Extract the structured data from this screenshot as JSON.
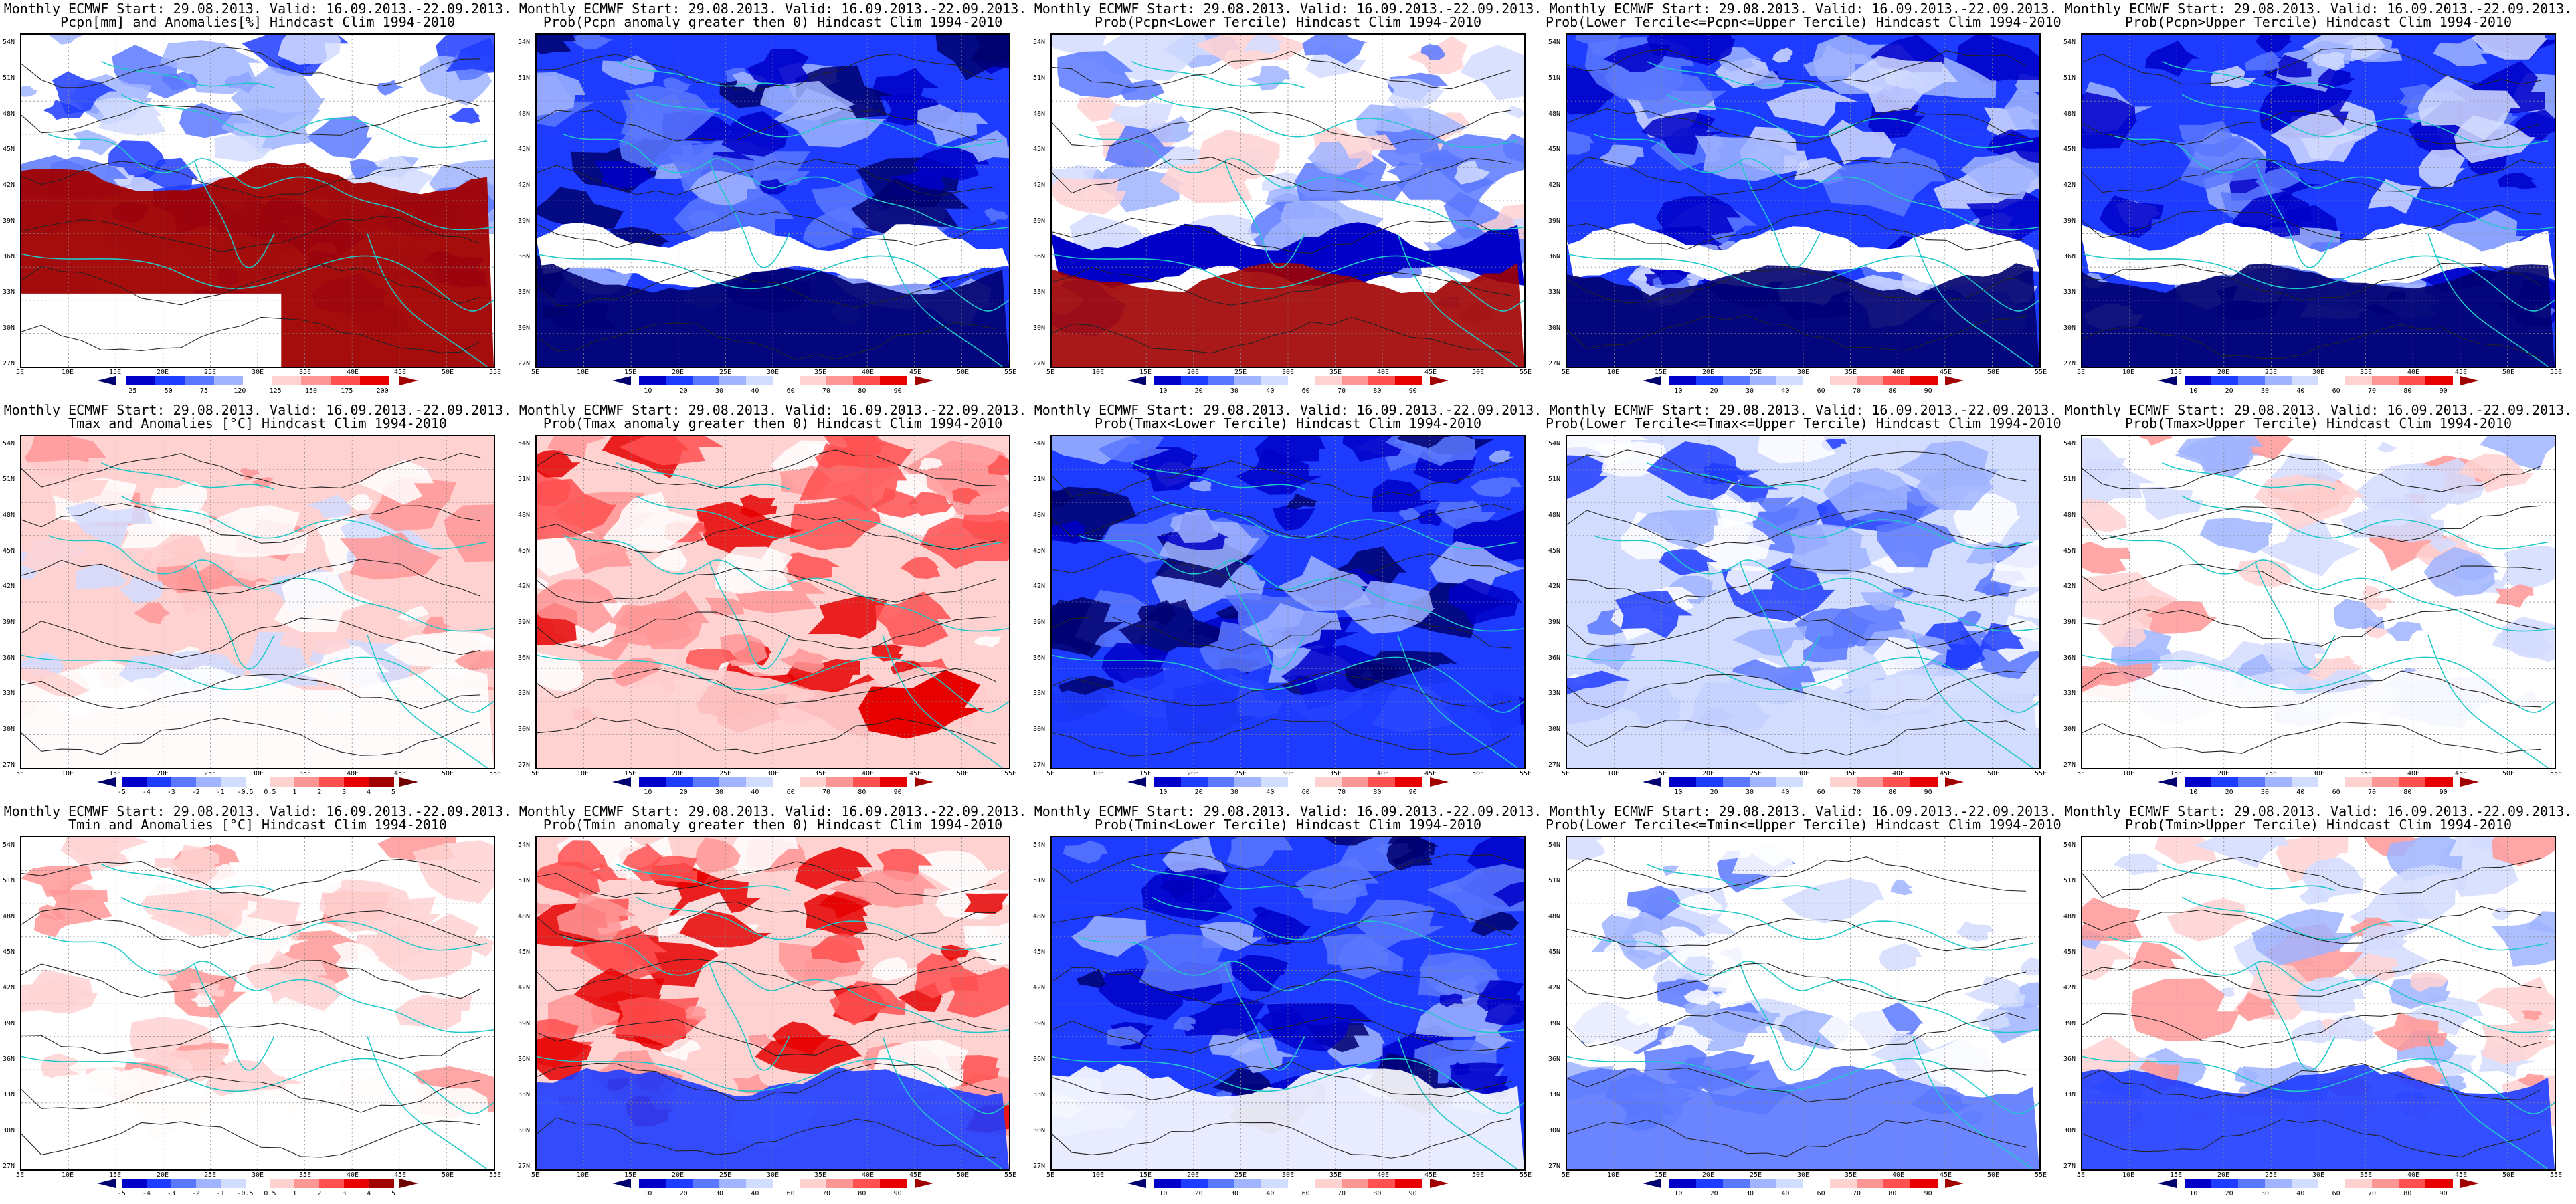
{
  "header": "Monthly ECMWF Start: 29.08.2013. Valid: 16.09.2013.-22.09.2013.",
  "lat_labels": [
    "54N",
    "51N",
    "48N",
    "45N",
    "42N",
    "39N",
    "36N",
    "33N",
    "30N",
    "27N"
  ],
  "lon_labels": [
    "5E",
    "10E",
    "15E",
    "20E",
    "25E",
    "30E",
    "35E",
    "40E",
    "45E",
    "50E",
    "55E"
  ],
  "prob_scale": {
    "ticks": [
      "10",
      "20",
      "30",
      "40",
      "60",
      "70",
      "80",
      "90"
    ],
    "colors": [
      "#00006e",
      "#0000c8",
      "#1e3cff",
      "#5a78ff",
      "#a0b4ff",
      "#d2dcff",
      "#ffffff",
      "#ffd2d2",
      "#ff9696",
      "#ff5050",
      "#e60000",
      "#a00000"
    ]
  },
  "anom_scale": {
    "ticks": [
      "-5",
      "-4",
      "-3",
      "-2",
      "-1",
      "-0.5",
      "0.5",
      "1",
      "2",
      "3",
      "4",
      "5"
    ],
    "colors": [
      "#00006e",
      "#0000c8",
      "#1e3cff",
      "#5a78ff",
      "#a0b4ff",
      "#d2dcff",
      "#ffffff",
      "#ffd2d2",
      "#ff9696",
      "#ff5050",
      "#e60000",
      "#a00000",
      "#6e0000"
    ]
  },
  "pcpn_scale": {
    "ticks": [
      "25",
      "50",
      "75",
      "120",
      "125",
      "150",
      "175",
      "200"
    ],
    "colors": [
      "#00006e",
      "#0000c8",
      "#1e3cff",
      "#5a78ff",
      "#a0b4ff",
      "#ffffff",
      "#ffd2d2",
      "#ff9696",
      "#ff5050",
      "#e60000",
      "#a00000"
    ]
  },
  "panels": [
    {
      "subtitle": "Pcpn[mm] and Anomalies[%] Hindcast Clim 1994-2010",
      "scale": "pcpn",
      "theme": "pcpn_anom"
    },
    {
      "subtitle": "Prob(Pcpn anomaly greater then 0) Hindcast Clim 1994-2010",
      "scale": "prob",
      "theme": "pcpn_gt0"
    },
    {
      "subtitle": "Prob(Pcpn<Lower Tercile) Hindcast Clim 1994-2010",
      "scale": "prob",
      "theme": "pcpn_lower"
    },
    {
      "subtitle": "Prob(Lower Tercile<=Pcpn<=Upper Tercile) Hindcast Clim 1994-2010",
      "scale": "prob",
      "theme": "pcpn_mid"
    },
    {
      "subtitle": "Prob(Pcpn>Upper Tercile) Hindcast Clim 1994-2010",
      "scale": "prob",
      "theme": "pcpn_upper"
    },
    {
      "subtitle": "Tmax and Anomalies [°C] Hindcast Clim 1994-2010",
      "scale": "anom",
      "theme": "tmax_anom"
    },
    {
      "subtitle": "Prob(Tmax anomaly greater then 0) Hindcast Clim 1994-2010",
      "scale": "prob",
      "theme": "tmax_gt0"
    },
    {
      "subtitle": "Prob(Tmax<Lower Tercile) Hindcast Clim 1994-2010",
      "scale": "prob",
      "theme": "tmax_lower"
    },
    {
      "subtitle": "Prob(Lower Tercile<=Tmax<=Upper Tercile) Hindcast Clim 1994-2010",
      "scale": "prob",
      "theme": "tmax_mid"
    },
    {
      "subtitle": "Prob(Tmax>Upper Tercile) Hindcast Clim 1994-2010",
      "scale": "prob",
      "theme": "tmax_upper"
    },
    {
      "subtitle": "Tmin and Anomalies [°C] Hindcast Clim 1994-2010",
      "scale": "anom",
      "theme": "tmin_anom"
    },
    {
      "subtitle": "Prob(Tmin anomaly greater then 0) Hindcast Clim 1994-2010",
      "scale": "prob",
      "theme": "tmin_gt0"
    },
    {
      "subtitle": "Prob(Tmin<Lower Tercile) Hindcast Clim 1994-2010",
      "scale": "prob",
      "theme": "tmin_lower"
    },
    {
      "subtitle": "Prob(Lower Tercile<=Tmin<=Upper Tercile) Hindcast Clim 1994-2010",
      "scale": "prob",
      "theme": "tmin_mid"
    },
    {
      "subtitle": "Prob(Tmin>Upper Tercile) Hindcast Clim 1994-2010",
      "scale": "prob",
      "theme": "tmin_upper"
    }
  ]
}
